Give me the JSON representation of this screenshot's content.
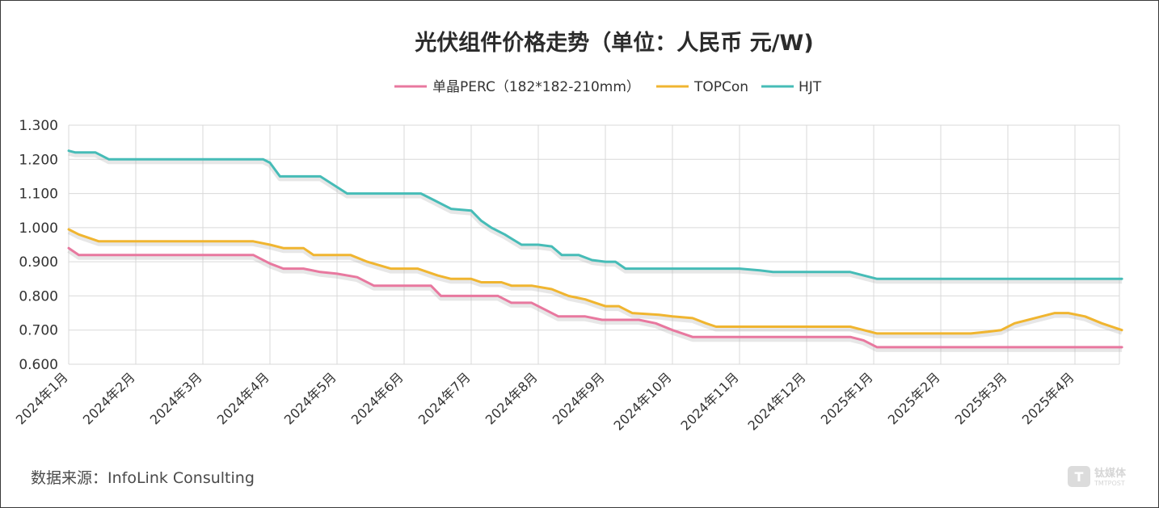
{
  "chart_data": {
    "type": "line",
    "title": "光伏组件价格走势（单位：人民币 元/W)",
    "source": "数据来源：InfoLink Consulting",
    "watermark": {
      "text": "钛媒体",
      "subtext": "TMTPOST",
      "glyph": "T"
    },
    "ylim": [
      0.6,
      1.3
    ],
    "yticks": [
      "1.300",
      "1.200",
      "1.100",
      "1.000",
      "0.900",
      "0.800",
      "0.700",
      "0.600"
    ],
    "grid": true,
    "legend_position": "top-center",
    "x_labels": [
      "2024年1月",
      "2024年2月",
      "2024年3月",
      "2024年4月",
      "2024年5月",
      "2024年6月",
      "2024年7月",
      "2024年8月",
      "2024年9月",
      "2024年10月",
      "2024年11月",
      "2024年12月",
      "2025年1月",
      "2025年2月",
      "2025年3月",
      "2025年4月"
    ],
    "x_range": [
      0,
      15.8
    ],
    "series": [
      {
        "name": "单晶PERC（182*182-210mm）",
        "color": "#e8789f",
        "points": [
          [
            0,
            0.94
          ],
          [
            0.15,
            0.92
          ],
          [
            1,
            0.92
          ],
          [
            2,
            0.92
          ],
          [
            2.6,
            0.92
          ],
          [
            2.75,
            0.92
          ],
          [
            3,
            0.895
          ],
          [
            3.2,
            0.88
          ],
          [
            3.5,
            0.88
          ],
          [
            3.75,
            0.87
          ],
          [
            4.0,
            0.865
          ],
          [
            4.3,
            0.855
          ],
          [
            4.55,
            0.83
          ],
          [
            5,
            0.83
          ],
          [
            5.4,
            0.83
          ],
          [
            5.55,
            0.8
          ],
          [
            6,
            0.8
          ],
          [
            6.4,
            0.8
          ],
          [
            6.6,
            0.78
          ],
          [
            6.9,
            0.78
          ],
          [
            7.3,
            0.74
          ],
          [
            7.7,
            0.74
          ],
          [
            7.95,
            0.73
          ],
          [
            8.5,
            0.73
          ],
          [
            8.75,
            0.72
          ],
          [
            9,
            0.7
          ],
          [
            9.3,
            0.68
          ],
          [
            10,
            0.68
          ],
          [
            11,
            0.68
          ],
          [
            11.65,
            0.68
          ],
          [
            11.85,
            0.67
          ],
          [
            12.05,
            0.65
          ],
          [
            12.5,
            0.65
          ],
          [
            13,
            0.65
          ],
          [
            14,
            0.65
          ],
          [
            15,
            0.65
          ],
          [
            15.7,
            0.65
          ]
        ]
      },
      {
        "name": "TOPCon",
        "color": "#f0b530",
        "points": [
          [
            0,
            0.995
          ],
          [
            0.15,
            0.98
          ],
          [
            0.45,
            0.96
          ],
          [
            1,
            0.96
          ],
          [
            2,
            0.96
          ],
          [
            2.6,
            0.96
          ],
          [
            2.75,
            0.96
          ],
          [
            3,
            0.95
          ],
          [
            3.2,
            0.94
          ],
          [
            3.5,
            0.94
          ],
          [
            3.65,
            0.92
          ],
          [
            4.0,
            0.92
          ],
          [
            4.2,
            0.92
          ],
          [
            4.45,
            0.9
          ],
          [
            4.8,
            0.88
          ],
          [
            5.2,
            0.88
          ],
          [
            5.5,
            0.86
          ],
          [
            5.7,
            0.85
          ],
          [
            6.0,
            0.85
          ],
          [
            6.15,
            0.84
          ],
          [
            6.45,
            0.84
          ],
          [
            6.6,
            0.83
          ],
          [
            6.9,
            0.83
          ],
          [
            7.2,
            0.82
          ],
          [
            7.45,
            0.8
          ],
          [
            7.7,
            0.79
          ],
          [
            7.85,
            0.78
          ],
          [
            8.0,
            0.77
          ],
          [
            8.2,
            0.77
          ],
          [
            8.4,
            0.75
          ],
          [
            8.8,
            0.745
          ],
          [
            9.0,
            0.74
          ],
          [
            9.3,
            0.735
          ],
          [
            9.5,
            0.72
          ],
          [
            9.65,
            0.71
          ],
          [
            10,
            0.71
          ],
          [
            11,
            0.71
          ],
          [
            11.65,
            0.71
          ],
          [
            11.85,
            0.7
          ],
          [
            12.05,
            0.69
          ],
          [
            12.5,
            0.69
          ],
          [
            13,
            0.69
          ],
          [
            13.45,
            0.69
          ],
          [
            13.7,
            0.695
          ],
          [
            13.9,
            0.7
          ],
          [
            14.1,
            0.72
          ],
          [
            14.4,
            0.735
          ],
          [
            14.7,
            0.75
          ],
          [
            14.9,
            0.75
          ],
          [
            15.15,
            0.74
          ],
          [
            15.4,
            0.72
          ],
          [
            15.7,
            0.7
          ]
        ]
      },
      {
        "name": "HJT",
        "color": "#46bcb7",
        "points": [
          [
            0,
            1.225
          ],
          [
            0.1,
            1.22
          ],
          [
            0.4,
            1.22
          ],
          [
            0.6,
            1.2
          ],
          [
            1,
            1.2
          ],
          [
            2,
            1.2
          ],
          [
            2.6,
            1.2
          ],
          [
            2.9,
            1.2
          ],
          [
            3.0,
            1.19
          ],
          [
            3.15,
            1.15
          ],
          [
            3.5,
            1.15
          ],
          [
            3.75,
            1.15
          ],
          [
            3.95,
            1.125
          ],
          [
            4.15,
            1.1
          ],
          [
            4.5,
            1.1
          ],
          [
            5,
            1.1
          ],
          [
            5.25,
            1.1
          ],
          [
            5.45,
            1.08
          ],
          [
            5.7,
            1.055
          ],
          [
            6.0,
            1.05
          ],
          [
            6.15,
            1.02
          ],
          [
            6.3,
            1.0
          ],
          [
            6.5,
            0.98
          ],
          [
            6.75,
            0.95
          ],
          [
            7.0,
            0.95
          ],
          [
            7.2,
            0.945
          ],
          [
            7.35,
            0.92
          ],
          [
            7.6,
            0.92
          ],
          [
            7.8,
            0.905
          ],
          [
            8.0,
            0.9
          ],
          [
            8.15,
            0.9
          ],
          [
            8.3,
            0.88
          ],
          [
            9,
            0.88
          ],
          [
            10,
            0.88
          ],
          [
            10.3,
            0.875
          ],
          [
            10.5,
            0.87
          ],
          [
            11,
            0.87
          ],
          [
            11.5,
            0.87
          ],
          [
            11.65,
            0.87
          ],
          [
            11.85,
            0.86
          ],
          [
            12.05,
            0.85
          ],
          [
            12.5,
            0.85
          ],
          [
            13,
            0.85
          ],
          [
            14,
            0.85
          ],
          [
            15,
            0.85
          ],
          [
            15.7,
            0.85
          ]
        ]
      }
    ]
  }
}
